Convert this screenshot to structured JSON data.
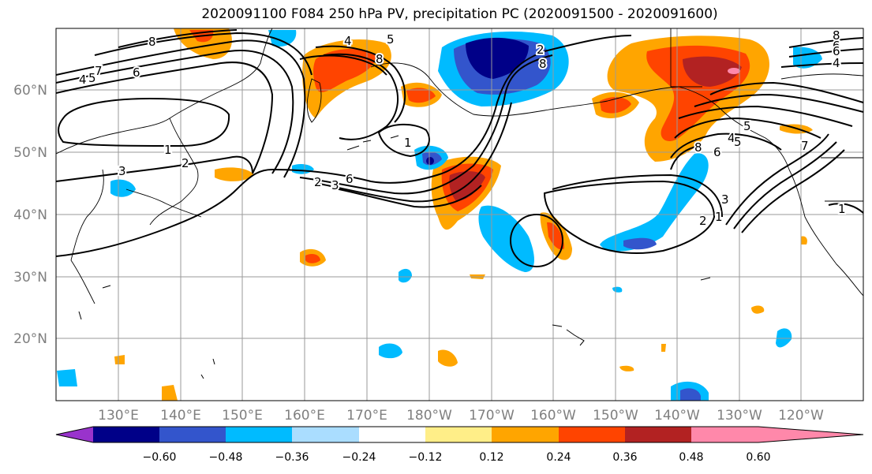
{
  "title": "2020091100 F084 250 hPa PV, precipitation PC (2020091500 - 2020091600)",
  "lat_labels": [
    "60°N",
    "50°N",
    "40°N",
    "30°N",
    "20°N"
  ],
  "lon_labels": [
    "130°E",
    "140°E",
    "150°E",
    "160°E",
    "170°E",
    "180°W",
    "170°W",
    "160°W",
    "150°W",
    "140°W",
    "130°W",
    "120°W"
  ],
  "colorbar": {
    "colors": [
      "#9933cc",
      "#000088",
      "#3355cc",
      "#00bbff",
      "#aaddff",
      "#ffffff",
      "#ffee88",
      "#ffa500",
      "#ff4400",
      "#b22222",
      "#ff88aa"
    ],
    "tick_labels": [
      "−0.60",
      "−0.48",
      "−0.36",
      "−0.24",
      "−0.12",
      "0.12",
      "0.24",
      "0.36",
      "0.48",
      "0.60"
    ]
  },
  "contour_labels": [
    "8",
    "4",
    "5",
    "7",
    "6",
    "4",
    "5",
    "8",
    "1",
    "2",
    "3",
    "2",
    "3",
    "6",
    "1",
    "2",
    "8",
    "6",
    "4",
    "5",
    "6",
    "8",
    "6",
    "4",
    "7",
    "8",
    "5",
    "2",
    "1",
    "3",
    "1"
  ]
}
